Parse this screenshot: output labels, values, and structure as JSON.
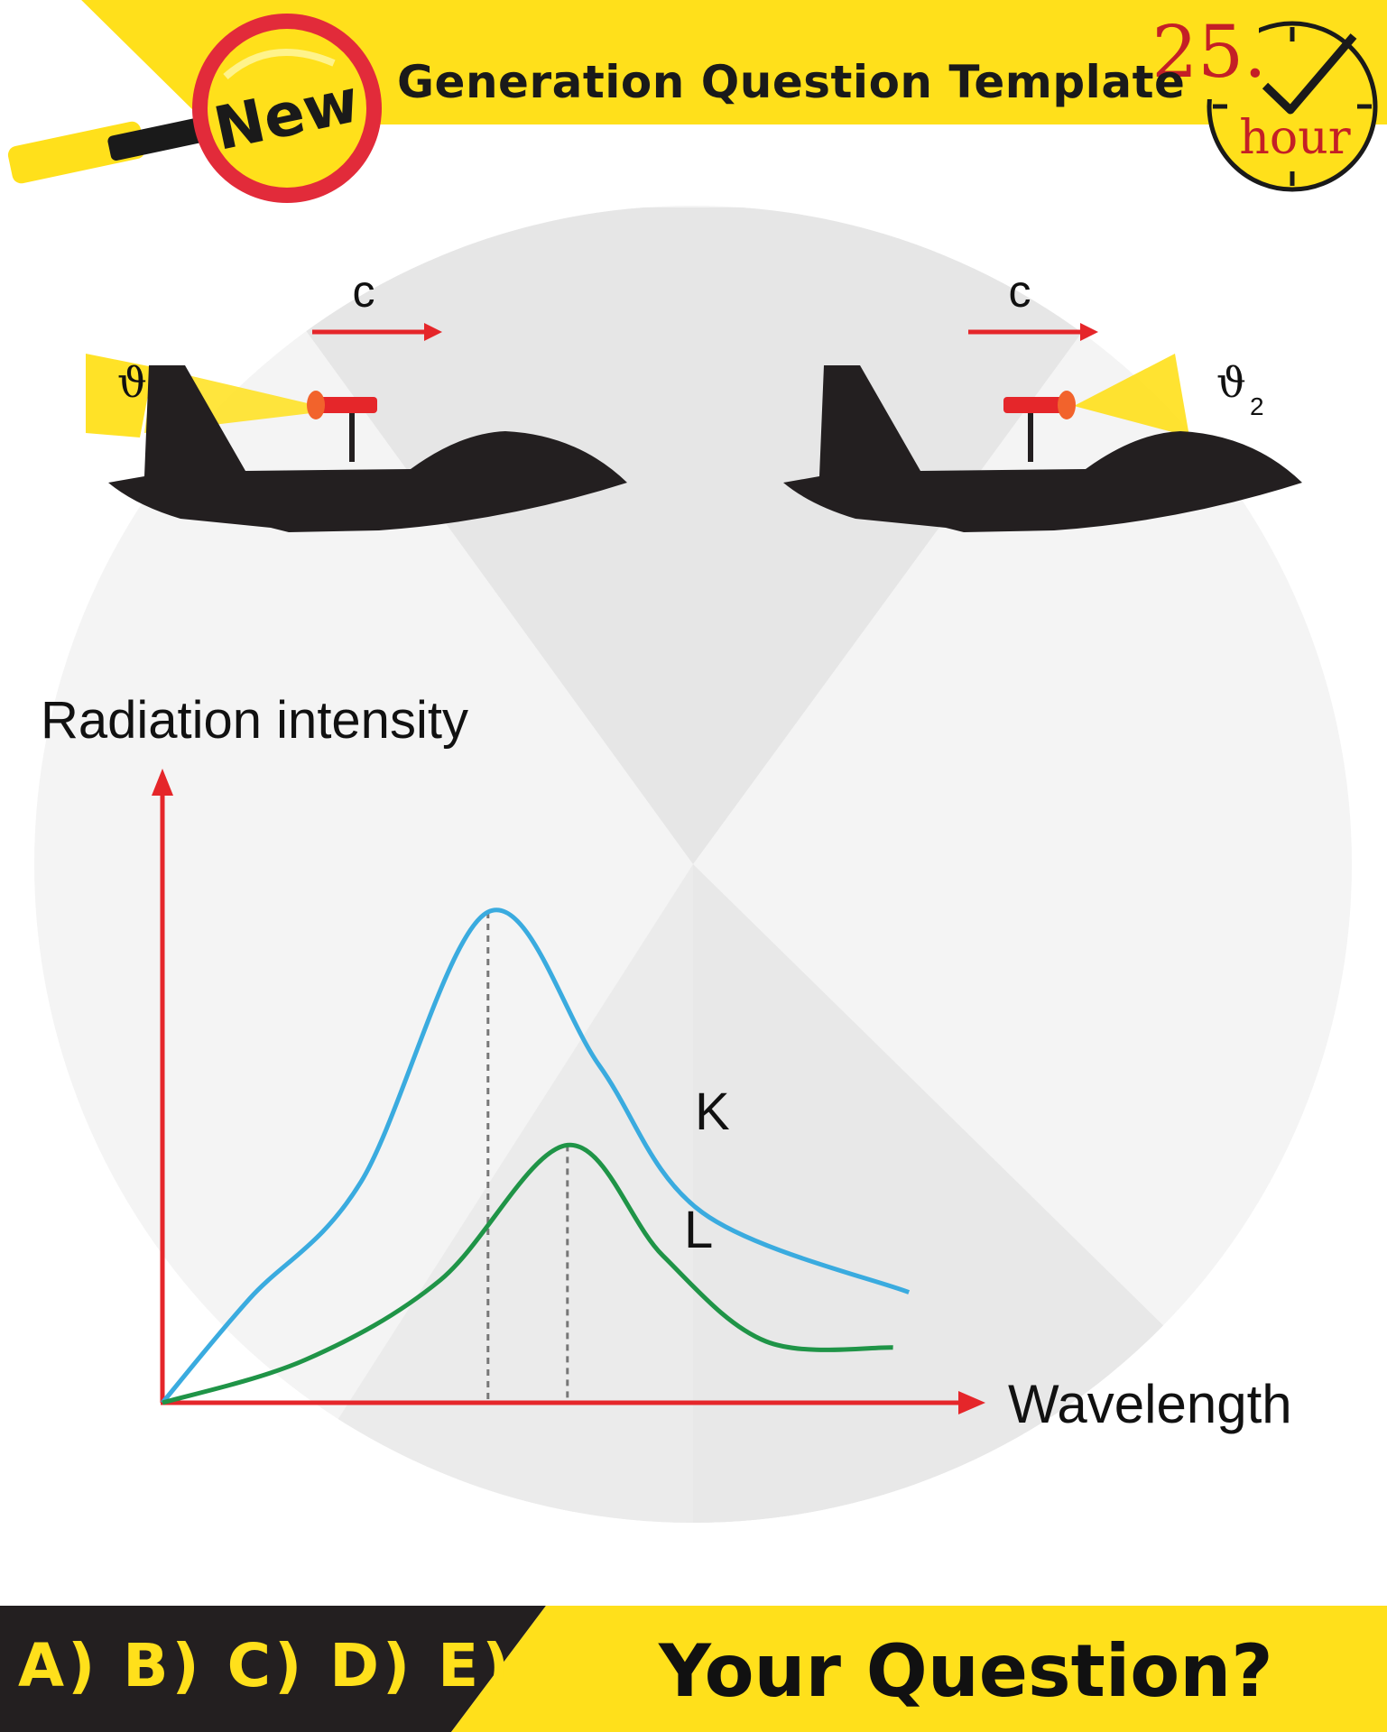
{
  "header": {
    "badge_label": "New",
    "title": "Generation Question Template",
    "clock_number": "25.",
    "clock_unit": "hour"
  },
  "diagram": {
    "left_velocity_label": "c",
    "right_velocity_label": "c",
    "left_freq_symbol": "ϑ",
    "right_freq_symbol": "ϑ",
    "right_freq_subscript": "2"
  },
  "chart_data": {
    "type": "line",
    "ylabel": "Radiation intensity",
    "xlabel": "Wavelength",
    "series": [
      {
        "name": "K",
        "peak_x": 0.41,
        "values": [
          [
            0,
            0
          ],
          [
            0.11,
            0.17
          ],
          [
            0.25,
            0.36
          ],
          [
            0.41,
            0.8
          ],
          [
            0.55,
            0.55
          ],
          [
            0.68,
            0.31
          ],
          [
            0.94,
            0.18
          ]
        ]
      },
      {
        "name": "L",
        "peak_x": 0.51,
        "values": [
          [
            0,
            0
          ],
          [
            0.18,
            0.07
          ],
          [
            0.35,
            0.2
          ],
          [
            0.51,
            0.42
          ],
          [
            0.63,
            0.24
          ],
          [
            0.76,
            0.1
          ],
          [
            0.92,
            0.09
          ]
        ]
      }
    ]
  },
  "footer": {
    "options": "A) B) C) D) E)",
    "question": "Your Question?"
  },
  "colors": {
    "accent_yellow": "#ffe01b",
    "dark": "#231f20",
    "axis_red": "#e5262a",
    "curve_k": "#3aabdf",
    "curve_l": "#1f9447"
  }
}
